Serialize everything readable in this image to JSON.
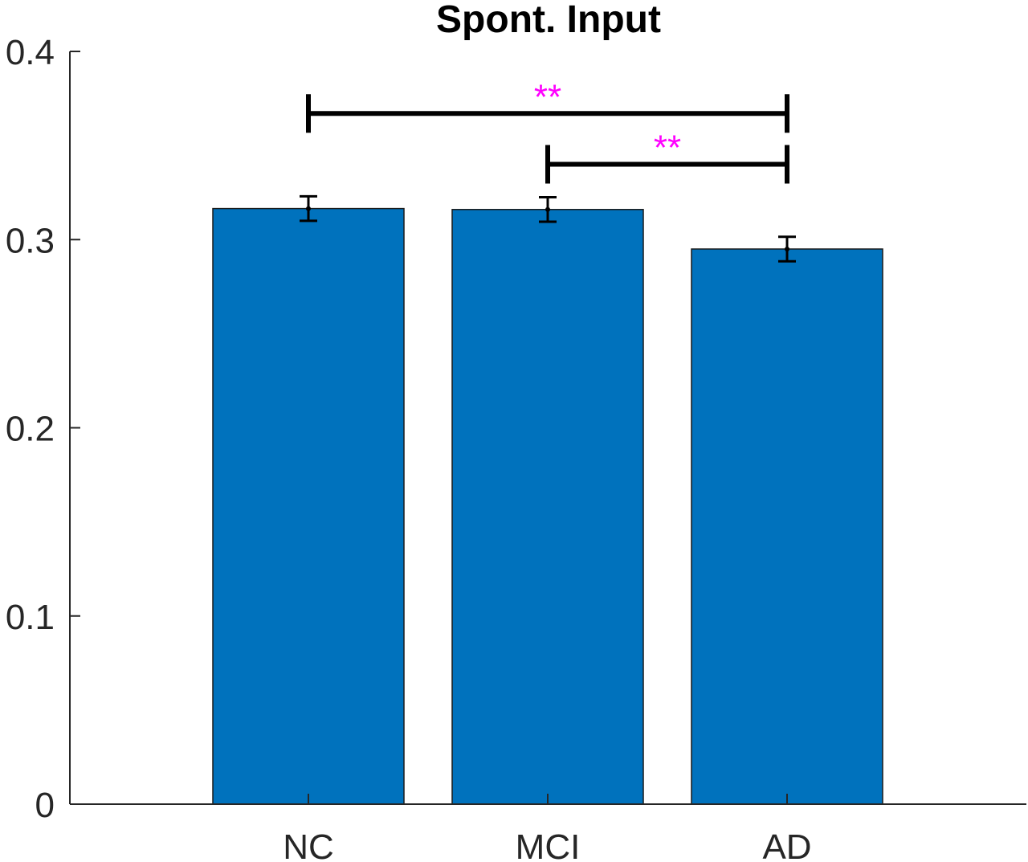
{
  "chart_data": {
    "type": "bar",
    "title": "Spont. Input",
    "xlabel": "",
    "ylabel": "",
    "categories": [
      "NC",
      "MCI",
      "AD"
    ],
    "values": [
      0.3165,
      0.316,
      0.295
    ],
    "errors": [
      0.0065,
      0.0065,
      0.0065
    ],
    "ylim": [
      0,
      0.4
    ],
    "yticks": [
      0,
      0.1,
      0.2,
      0.3,
      0.4
    ],
    "ytick_labels": [
      "0",
      "0.1",
      "0.2",
      "0.3",
      "0.4"
    ],
    "grid": false,
    "bar_color": "#0072BD",
    "significance": [
      {
        "from": "NC",
        "to": "AD",
        "y": 0.367,
        "label": "**"
      },
      {
        "from": "MCI",
        "to": "AD",
        "y": 0.34,
        "label": "**"
      }
    ],
    "significance_color": "#FF00FF"
  }
}
